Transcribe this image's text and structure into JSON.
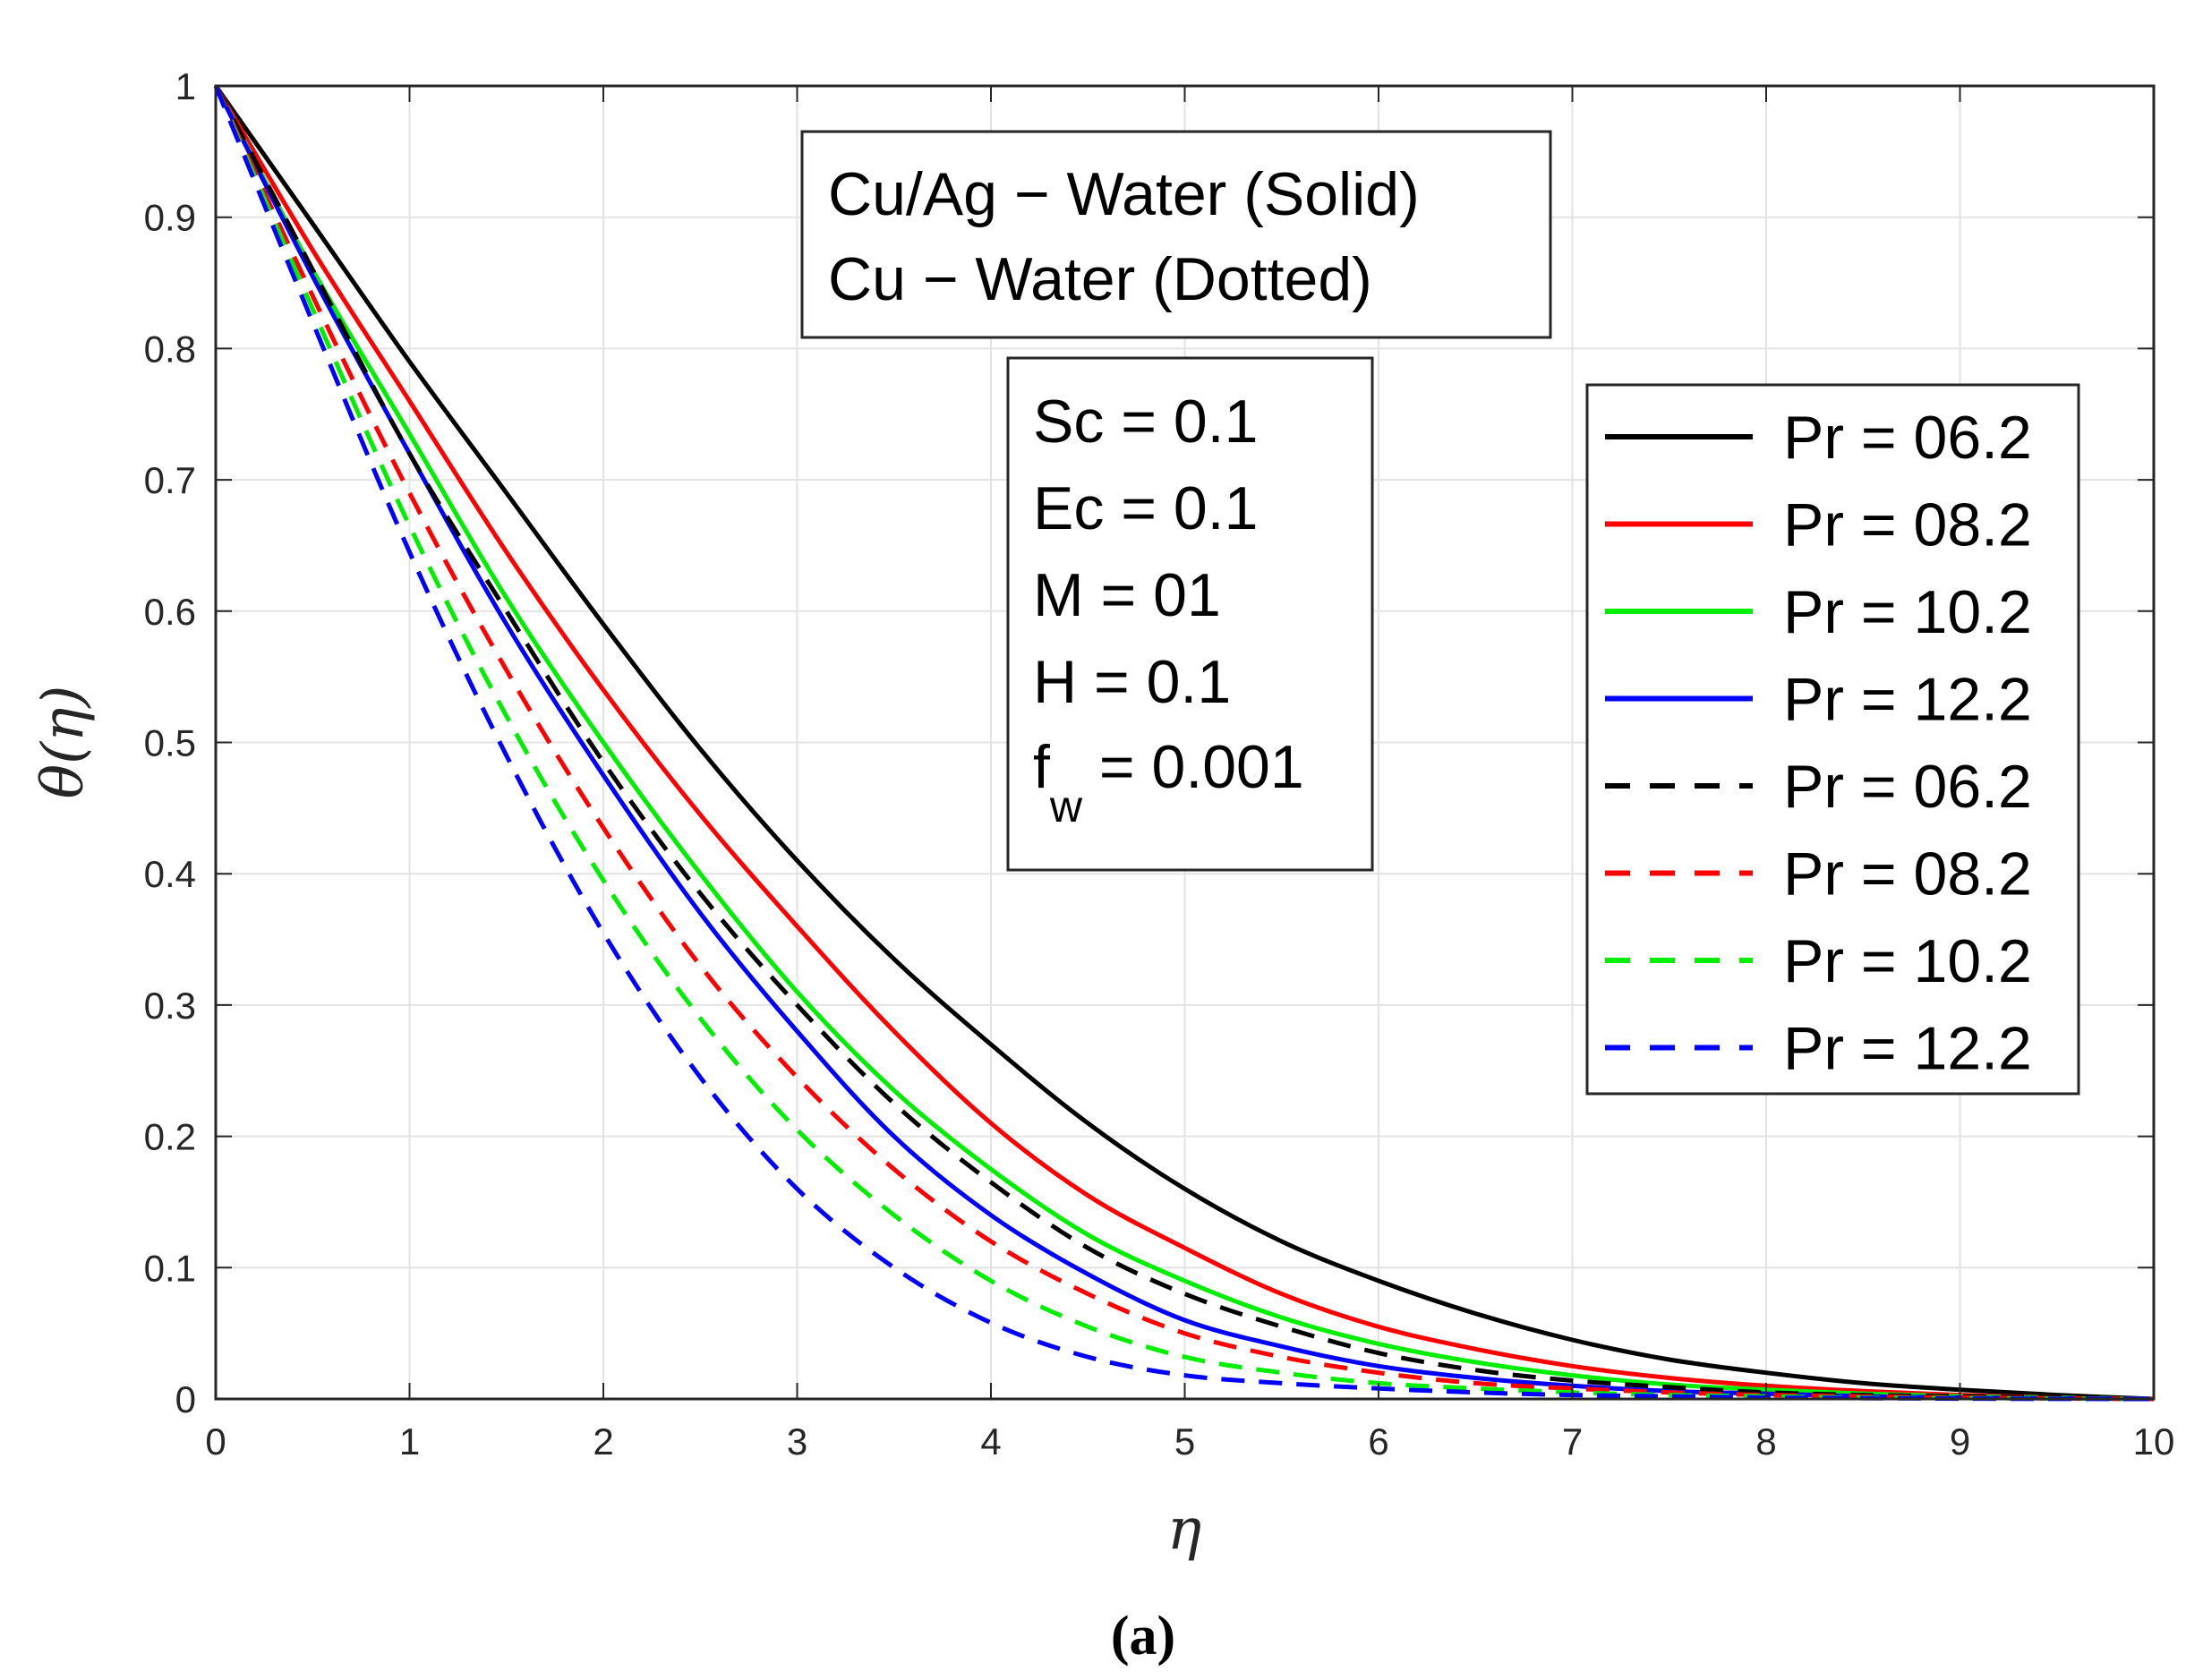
{
  "chart_data": {
    "type": "line",
    "xlabel": "η",
    "ylabel": "θ(η)",
    "xlim": [
      0,
      10
    ],
    "ylim": [
      0,
      1
    ],
    "xticks": [
      "0",
      "1",
      "2",
      "3",
      "4",
      "5",
      "6",
      "7",
      "8",
      "9",
      "10"
    ],
    "yticks": [
      "0",
      "0.1",
      "0.2",
      "0.3",
      "0.4",
      "0.5",
      "0.6",
      "0.7",
      "0.8",
      "0.9",
      "1"
    ],
    "grid": true,
    "caption": "(a)",
    "annotation_box_1": [
      "Cu/Ag − Water (Solid)",
      "Cu − Water (Dotted)"
    ],
    "annotation_box_2": [
      "Sc = 0.1",
      "Ec = 0.1",
      "M = 01",
      "H = 0.1",
      "f",
      "w",
      " = 0.001"
    ],
    "legend_position": "right",
    "x": [
      0,
      0.5,
      1,
      1.5,
      2,
      2.5,
      3,
      3.5,
      4,
      4.5,
      5,
      5.5,
      6,
      6.5,
      7,
      7.5,
      8,
      8.5,
      9,
      9.5,
      10
    ],
    "series": [
      {
        "name": "Pr = 06.2",
        "color": "#000000",
        "style": "solid",
        "values": [
          1,
          0.895,
          0.79,
          0.69,
          0.59,
          0.495,
          0.41,
          0.335,
          0.27,
          0.21,
          0.16,
          0.12,
          0.09,
          0.065,
          0.045,
          0.03,
          0.02,
          0.012,
          0.007,
          0.003,
          0
        ]
      },
      {
        "name": "Pr = 08.2",
        "color": "#ff0000",
        "style": "solid",
        "values": [
          1,
          0.875,
          0.76,
          0.645,
          0.54,
          0.445,
          0.36,
          0.28,
          0.21,
          0.155,
          0.115,
          0.08,
          0.055,
          0.038,
          0.025,
          0.016,
          0.01,
          0.006,
          0.003,
          0.001,
          0
        ]
      },
      {
        "name": "Pr = 10.2",
        "color": "#00ee00",
        "style": "solid",
        "values": [
          1,
          0.86,
          0.735,
          0.61,
          0.5,
          0.4,
          0.31,
          0.235,
          0.175,
          0.125,
          0.09,
          0.062,
          0.042,
          0.028,
          0.018,
          0.011,
          0.007,
          0.004,
          0.002,
          0.001,
          0
        ]
      },
      {
        "name": "Pr = 12.2",
        "color": "#0000ff",
        "style": "solid",
        "values": [
          1,
          0.855,
          0.72,
          0.59,
          0.475,
          0.37,
          0.28,
          0.2,
          0.14,
          0.095,
          0.06,
          0.04,
          0.025,
          0.016,
          0.01,
          0.006,
          0.004,
          0.002,
          0.001,
          0.0005,
          0
        ]
      },
      {
        "name": "Pr = 06.2",
        "color": "#000000",
        "style": "dashed",
        "values": [
          1,
          0.86,
          0.72,
          0.6,
          0.485,
          0.385,
          0.3,
          0.225,
          0.165,
          0.115,
          0.08,
          0.055,
          0.035,
          0.022,
          0.014,
          0.009,
          0.005,
          0.003,
          0.002,
          0.001,
          0
        ]
      },
      {
        "name": "Pr = 08.2",
        "color": "#ff0000",
        "style": "dashed",
        "values": [
          1,
          0.84,
          0.69,
          0.555,
          0.435,
          0.33,
          0.245,
          0.175,
          0.12,
          0.08,
          0.05,
          0.032,
          0.02,
          0.012,
          0.008,
          0.005,
          0.003,
          0.002,
          0.001,
          0.0005,
          0
        ]
      },
      {
        "name": "Pr = 10.2",
        "color": "#00ee00",
        "style": "dashed",
        "values": [
          1,
          0.83,
          0.665,
          0.52,
          0.395,
          0.29,
          0.205,
          0.14,
          0.09,
          0.055,
          0.032,
          0.02,
          0.012,
          0.008,
          0.005,
          0.003,
          0.002,
          0.001,
          0.0006,
          0.0003,
          0
        ]
      },
      {
        "name": "Pr = 12.2",
        "color": "#0000ff",
        "style": "dashed",
        "values": [
          1,
          0.82,
          0.645,
          0.49,
          0.355,
          0.245,
          0.16,
          0.1,
          0.058,
          0.032,
          0.018,
          0.012,
          0.008,
          0.005,
          0.003,
          0.002,
          0.001,
          0.0006,
          0.0003,
          0.0001,
          0
        ]
      }
    ]
  }
}
